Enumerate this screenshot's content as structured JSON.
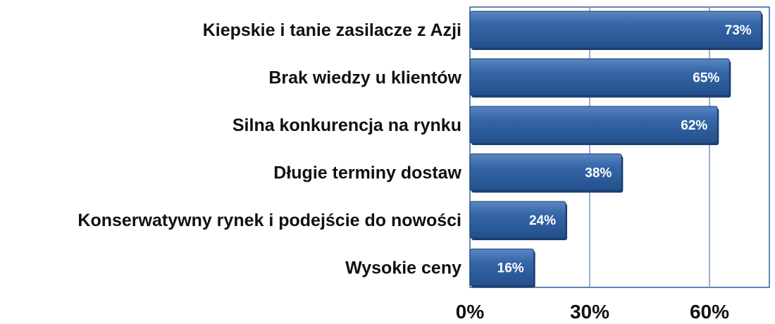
{
  "chart_data": {
    "type": "bar",
    "orientation": "horizontal",
    "categories": [
      "Kiepskie i tanie zasilacze z Azji",
      "Brak wiedzy u klientów",
      "Silna konkurencja na rynku",
      "Długie terminy dostaw",
      "Konserwatywny rynek i podejście do nowości",
      "Wysokie ceny"
    ],
    "values": [
      73,
      65,
      62,
      38,
      24,
      16
    ],
    "data_labels": [
      "73%",
      "65%",
      "62%",
      "38%",
      "24%",
      "16%"
    ],
    "xticks": [
      0,
      30,
      60
    ],
    "xtick_labels": [
      "0%",
      "30%",
      "60%"
    ],
    "xlim": [
      0,
      75
    ],
    "grid": true,
    "bar_color": "#2f5fa0",
    "bar_edge_color": "#1c3f70",
    "frame_color": "#3b68a8",
    "grid_color": "#6c8fbf"
  }
}
